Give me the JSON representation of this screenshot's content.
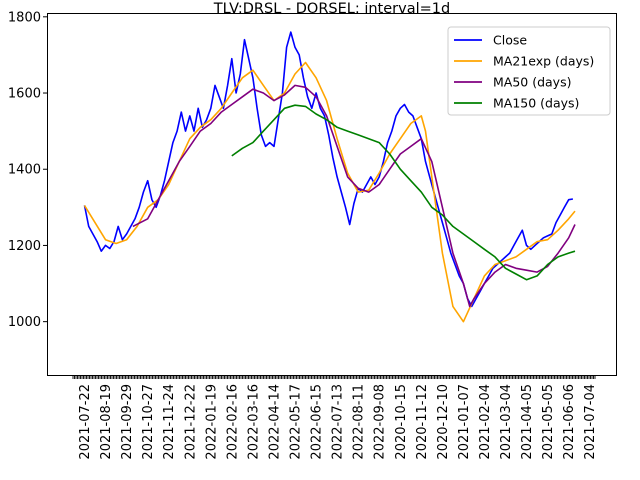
{
  "chart_data": {
    "type": "line",
    "title": "TLV:DRSL - DORSEL: interval=1d",
    "xlabel": "",
    "ylabel": "",
    "ylim": [
      860,
      1810
    ],
    "yticks": [
      1000,
      1200,
      1400,
      1600,
      1800
    ],
    "x_tick_labels": [
      "2021-07-22",
      "2021-08-19",
      "2021-09-29",
      "2021-10-27",
      "2021-11-24",
      "2021-12-22",
      "2022-01-19",
      "2022-02-16",
      "2022-03-16",
      "2022-04-14",
      "2022-05-17",
      "2022-06-15",
      "2022-07-13",
      "2022-08-11",
      "2022-09-08",
      "2020-10-15",
      "2020-11-12",
      "2020-12-10",
      "2021-01-07",
      "2021-02-04",
      "2021-03-04",
      "2021-04-05",
      "2021-05-05",
      "2021-06-06",
      "2021-07-04"
    ],
    "grid": false,
    "legend": "top-right",
    "series": [
      {
        "name": "Close",
        "color": "#0000ff",
        "values": [
          [
            0,
            1305
          ],
          [
            0.2,
            1250
          ],
          [
            0.4,
            1230
          ],
          [
            0.6,
            1210
          ],
          [
            0.8,
            1185
          ],
          [
            1,
            1200
          ],
          [
            1.2,
            1192
          ],
          [
            1.4,
            1210
          ],
          [
            1.6,
            1250
          ],
          [
            1.8,
            1215
          ],
          [
            2,
            1230
          ],
          [
            2.2,
            1250
          ],
          [
            2.4,
            1270
          ],
          [
            2.6,
            1300
          ],
          [
            2.8,
            1340
          ],
          [
            3,
            1370
          ],
          [
            3.2,
            1320
          ],
          [
            3.4,
            1300
          ],
          [
            3.6,
            1330
          ],
          [
            3.8,
            1370
          ],
          [
            4,
            1420
          ],
          [
            4.2,
            1470
          ],
          [
            4.4,
            1500
          ],
          [
            4.6,
            1550
          ],
          [
            4.8,
            1500
          ],
          [
            5,
            1540
          ],
          [
            5.2,
            1500
          ],
          [
            5.4,
            1560
          ],
          [
            5.6,
            1510
          ],
          [
            5.8,
            1530
          ],
          [
            6,
            1560
          ],
          [
            6.2,
            1620
          ],
          [
            6.4,
            1590
          ],
          [
            6.6,
            1560
          ],
          [
            6.8,
            1620
          ],
          [
            7,
            1690
          ],
          [
            7.2,
            1600
          ],
          [
            7.4,
            1650
          ],
          [
            7.6,
            1740
          ],
          [
            7.8,
            1690
          ],
          [
            8,
            1640
          ],
          [
            8.2,
            1560
          ],
          [
            8.4,
            1490
          ],
          [
            8.6,
            1460
          ],
          [
            8.8,
            1470
          ],
          [
            9,
            1460
          ],
          [
            9.2,
            1530
          ],
          [
            9.4,
            1600
          ],
          [
            9.6,
            1720
          ],
          [
            9.8,
            1760
          ],
          [
            10,
            1720
          ],
          [
            10.2,
            1700
          ],
          [
            10.4,
            1640
          ],
          [
            10.6,
            1590
          ],
          [
            10.8,
            1560
          ],
          [
            11,
            1600
          ],
          [
            11.2,
            1560
          ],
          [
            11.4,
            1540
          ],
          [
            11.6,
            1490
          ],
          [
            11.8,
            1430
          ],
          [
            12,
            1380
          ],
          [
            12.2,
            1340
          ],
          [
            12.4,
            1300
          ],
          [
            12.6,
            1255
          ],
          [
            12.8,
            1310
          ],
          [
            13,
            1350
          ],
          [
            13.2,
            1340
          ],
          [
            13.4,
            1360
          ],
          [
            13.6,
            1380
          ],
          [
            13.8,
            1360
          ],
          [
            14,
            1380
          ],
          [
            14.2,
            1420
          ],
          [
            14.4,
            1470
          ],
          [
            14.6,
            1500
          ],
          [
            14.8,
            1540
          ],
          [
            15,
            1560
          ],
          [
            15.2,
            1570
          ],
          [
            15.4,
            1550
          ],
          [
            15.6,
            1540
          ],
          [
            15.8,
            1510
          ],
          [
            16,
            1480
          ],
          [
            16.2,
            1420
          ],
          [
            16.4,
            1380
          ],
          [
            16.6,
            1340
          ],
          [
            16.8,
            1300
          ],
          [
            17,
            1260
          ],
          [
            17.2,
            1220
          ],
          [
            17.4,
            1180
          ],
          [
            17.6,
            1150
          ],
          [
            17.8,
            1120
          ],
          [
            18,
            1100
          ],
          [
            18.2,
            1060
          ],
          [
            18.4,
            1040
          ],
          [
            18.6,
            1060
          ],
          [
            18.8,
            1080
          ],
          [
            19,
            1100
          ],
          [
            19.2,
            1120
          ],
          [
            19.4,
            1140
          ],
          [
            19.6,
            1150
          ],
          [
            19.8,
            1160
          ],
          [
            20,
            1170
          ],
          [
            20.2,
            1180
          ],
          [
            20.4,
            1200
          ],
          [
            20.6,
            1220
          ],
          [
            20.8,
            1240
          ],
          [
            21,
            1200
          ],
          [
            21.2,
            1190
          ],
          [
            21.4,
            1200
          ],
          [
            21.6,
            1210
          ],
          [
            21.8,
            1220
          ],
          [
            22,
            1225
          ],
          [
            22.2,
            1230
          ],
          [
            22.4,
            1260
          ],
          [
            22.6,
            1280
          ],
          [
            22.8,
            1300
          ],
          [
            23,
            1320
          ],
          [
            23.2,
            1322
          ]
        ]
      },
      {
        "name": "MA21exp (days)",
        "color": "#ffa500",
        "values": [
          [
            0,
            1305
          ],
          [
            0.5,
            1260
          ],
          [
            1,
            1215
          ],
          [
            1.5,
            1205
          ],
          [
            2,
            1215
          ],
          [
            2.5,
            1250
          ],
          [
            3,
            1300
          ],
          [
            3.5,
            1320
          ],
          [
            4,
            1360
          ],
          [
            4.5,
            1420
          ],
          [
            5,
            1480
          ],
          [
            5.5,
            1510
          ],
          [
            6,
            1530
          ],
          [
            6.5,
            1560
          ],
          [
            7,
            1600
          ],
          [
            7.5,
            1640
          ],
          [
            8,
            1660
          ],
          [
            8.5,
            1620
          ],
          [
            9,
            1580
          ],
          [
            9.5,
            1600
          ],
          [
            10,
            1650
          ],
          [
            10.5,
            1680
          ],
          [
            11,
            1640
          ],
          [
            11.5,
            1580
          ],
          [
            12,
            1480
          ],
          [
            12.5,
            1390
          ],
          [
            13,
            1340
          ],
          [
            13.5,
            1345
          ],
          [
            14,
            1390
          ],
          [
            14.5,
            1440
          ],
          [
            15,
            1480
          ],
          [
            15.5,
            1520
          ],
          [
            16,
            1540
          ],
          [
            16.2,
            1500
          ],
          [
            16.5,
            1380
          ],
          [
            17,
            1180
          ],
          [
            17.5,
            1040
          ],
          [
            18,
            1000
          ],
          [
            18.5,
            1060
          ],
          [
            19,
            1120
          ],
          [
            19.5,
            1150
          ],
          [
            20,
            1160
          ],
          [
            20.5,
            1170
          ],
          [
            21,
            1190
          ],
          [
            21.5,
            1210
          ],
          [
            22,
            1215
          ],
          [
            22.5,
            1240
          ],
          [
            23,
            1270
          ],
          [
            23.3,
            1290
          ]
        ]
      },
      {
        "name": "MA50 (days)",
        "color": "#800080",
        "values": [
          [
            2.3,
            1250
          ],
          [
            3,
            1270
          ],
          [
            3.5,
            1320
          ],
          [
            4,
            1370
          ],
          [
            4.5,
            1420
          ],
          [
            5,
            1460
          ],
          [
            5.5,
            1500
          ],
          [
            6,
            1520
          ],
          [
            6.5,
            1550
          ],
          [
            7,
            1570
          ],
          [
            7.5,
            1590
          ],
          [
            8,
            1610
          ],
          [
            8.5,
            1600
          ],
          [
            9,
            1580
          ],
          [
            9.5,
            1595
          ],
          [
            10,
            1620
          ],
          [
            10.5,
            1615
          ],
          [
            11,
            1590
          ],
          [
            11.5,
            1540
          ],
          [
            12,
            1460
          ],
          [
            12.5,
            1380
          ],
          [
            13,
            1350
          ],
          [
            13.5,
            1340
          ],
          [
            14,
            1360
          ],
          [
            14.5,
            1400
          ],
          [
            15,
            1440
          ],
          [
            15.5,
            1460
          ],
          [
            16,
            1480
          ],
          [
            16.5,
            1420
          ],
          [
            17,
            1300
          ],
          [
            17.5,
            1180
          ],
          [
            18,
            1100
          ],
          [
            18.3,
            1040
          ],
          [
            18.5,
            1060
          ],
          [
            19,
            1100
          ],
          [
            19.5,
            1130
          ],
          [
            20,
            1150
          ],
          [
            20.5,
            1140
          ],
          [
            21,
            1135
          ],
          [
            21.5,
            1130
          ],
          [
            22,
            1145
          ],
          [
            22.5,
            1180
          ],
          [
            23,
            1220
          ],
          [
            23.3,
            1255
          ]
        ]
      },
      {
        "name": "MA150 (days)",
        "color": "#008000",
        "values": [
          [
            7,
            1435
          ],
          [
            7.5,
            1455
          ],
          [
            8,
            1470
          ],
          [
            8.5,
            1500
          ],
          [
            9,
            1530
          ],
          [
            9.5,
            1560
          ],
          [
            10,
            1568
          ],
          [
            10.5,
            1565
          ],
          [
            11,
            1545
          ],
          [
            11.5,
            1530
          ],
          [
            12,
            1510
          ],
          [
            12.5,
            1500
          ],
          [
            13,
            1490
          ],
          [
            13.5,
            1480
          ],
          [
            14,
            1470
          ],
          [
            14.5,
            1440
          ],
          [
            15,
            1400
          ],
          [
            15.5,
            1370
          ],
          [
            16,
            1340
          ],
          [
            16.5,
            1300
          ],
          [
            17,
            1280
          ],
          [
            17.5,
            1250
          ],
          [
            18,
            1230
          ],
          [
            18.5,
            1210
          ],
          [
            19,
            1190
          ],
          [
            19.5,
            1170
          ],
          [
            20,
            1140
          ],
          [
            20.5,
            1125
          ],
          [
            21,
            1110
          ],
          [
            21.5,
            1120
          ],
          [
            22,
            1150
          ],
          [
            22.5,
            1170
          ],
          [
            23,
            1180
          ],
          [
            23.3,
            1185
          ]
        ]
      }
    ]
  }
}
